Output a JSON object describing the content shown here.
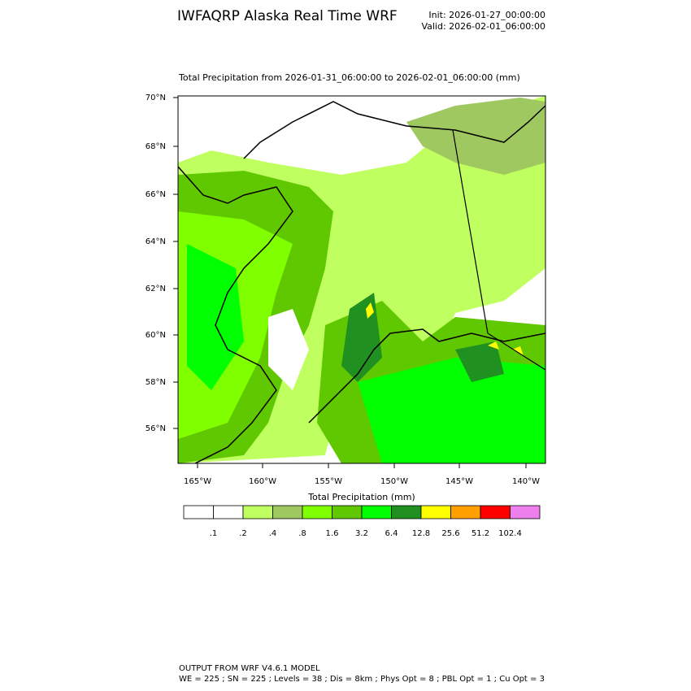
{
  "header": {
    "title": "IWFAQRP Alaska Real Time WRF",
    "init": "Init: 2026-01-27_00:00:00",
    "valid": "Valid: 2026-02-01_06:00:00"
  },
  "map": {
    "subtitle": "Total Precipitation from 2026-01-31_06:00:00 to 2026-02-01_06:00:00   (mm)",
    "lat_labels": [
      "70°N",
      "68°N",
      "66°N",
      "64°N",
      "62°N",
      "60°N",
      "58°N",
      "56°N"
    ],
    "lon_labels": [
      "165°W",
      "160°W",
      "155°W",
      "150°W",
      "145°W",
      "140°W"
    ]
  },
  "colorbar": {
    "label": "Total Precipitation  (mm)",
    "colors": [
      "#ffffff",
      "#ffffff",
      "#c0ff60",
      "#a0c860",
      "#80ff00",
      "#60c800",
      "#00ff00",
      "#209020",
      "#ffff00",
      "#ffa000",
      "#ff0000",
      "#ee80ee"
    ],
    "labels": [
      ".1",
      ".2",
      ".4",
      ".8",
      "1.6",
      "3.2",
      "6.4",
      "12.8",
      "25.6",
      "51.2",
      "102.4"
    ]
  },
  "footer": {
    "line1": "OUTPUT FROM WRF V4.6.1 MODEL",
    "line2": "WE = 225 ; SN = 225 ; Levels = 38 ; Dis = 8km ; Phys Opt = 8 ; PBL Opt = 1 ; Cu Opt = 3"
  }
}
